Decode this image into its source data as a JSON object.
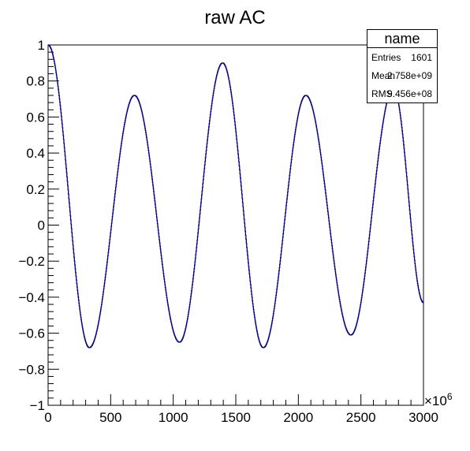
{
  "chart_data": {
    "type": "line",
    "title": "raw AC",
    "xlabel": "",
    "ylabel": "",
    "xlim": [
      0,
      3000
    ],
    "ylim": [
      -1,
      1
    ],
    "x_multiplier": "×10",
    "x_multiplier_exponent": "6",
    "x_major_ticks": [
      0,
      500,
      1000,
      1500,
      2000,
      2500,
      3000
    ],
    "x_tick_labels": [
      "0",
      "500",
      "1000",
      "1500",
      "2000",
      "2500",
      "3000"
    ],
    "y_major_ticks": [
      -1,
      -0.8,
      -0.6,
      -0.4,
      -0.2,
      0,
      0.2,
      0.4,
      0.6,
      0.8,
      1
    ],
    "y_tick_labels": [
      "−1",
      "−0.8",
      "−0.6",
      "−0.4",
      "−0.2",
      "0",
      "0.2",
      "0.4",
      "0.6",
      "0.8",
      "1"
    ],
    "grid": false,
    "series": [
      {
        "color": "#000080",
        "points": [
          [
            0,
            1
          ],
          [
            330,
            -0.68
          ],
          [
            690,
            0.72
          ],
          [
            1050,
            -0.65
          ],
          [
            1395,
            0.9
          ],
          [
            1720,
            -0.68
          ],
          [
            2060,
            0.72
          ],
          [
            2420,
            -0.61
          ],
          [
            2760,
            0.76
          ],
          [
            3000,
            -0.43
          ]
        ]
      }
    ],
    "stats": {
      "title": "name",
      "rows": [
        {
          "label": "Entries",
          "value": "1601"
        },
        {
          "label": "Mean",
          "value": "2.758e+09"
        },
        {
          "label": "RMS",
          "value": "9.456e+08"
        }
      ]
    }
  }
}
